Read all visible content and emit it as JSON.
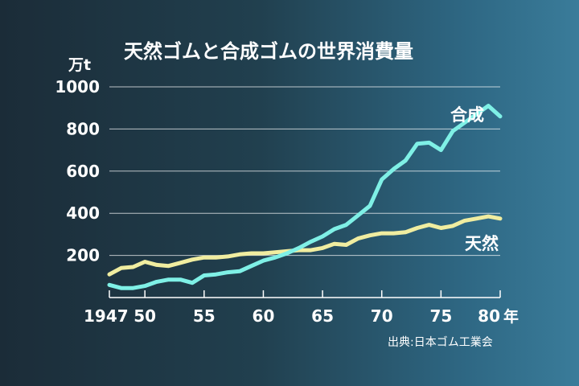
{
  "chart_data": {
    "type": "line",
    "title": "天然ゴムと合成ゴムの世界消費量",
    "y_unit": "万t",
    "x_unit": "年",
    "source": "出典:日本ゴム工業会",
    "xlim": [
      1947,
      1980
    ],
    "ylim": [
      0,
      1000
    ],
    "y_ticks": [
      {
        "value": 200,
        "label": "200"
      },
      {
        "value": 400,
        "label": "400"
      },
      {
        "value": 600,
        "label": "600"
      },
      {
        "value": 800,
        "label": "800"
      },
      {
        "value": 1000,
        "label": "1000"
      }
    ],
    "x_ticks": [
      {
        "value": 1947,
        "label": "1947"
      },
      {
        "value": 1950,
        "label": "50"
      },
      {
        "value": 1955,
        "label": "55"
      },
      {
        "value": 1960,
        "label": "60"
      },
      {
        "value": 1965,
        "label": "65"
      },
      {
        "value": 1970,
        "label": "70"
      },
      {
        "value": 1975,
        "label": "75"
      },
      {
        "value": 1980,
        "label": "80"
      }
    ],
    "x": [
      1947,
      1948,
      1949,
      1950,
      1951,
      1952,
      1953,
      1954,
      1955,
      1956,
      1957,
      1958,
      1959,
      1960,
      1961,
      1962,
      1963,
      1964,
      1965,
      1966,
      1967,
      1968,
      1969,
      1970,
      1971,
      1972,
      1973,
      1974,
      1975,
      1976,
      1977,
      1978,
      1979,
      1980
    ],
    "series": [
      {
        "name": "合成",
        "color": "#7ff0e6",
        "values": [
          60,
          45,
          45,
          55,
          75,
          85,
          85,
          70,
          105,
          110,
          120,
          125,
          150,
          175,
          190,
          210,
          235,
          265,
          290,
          325,
          345,
          390,
          435,
          560,
          610,
          650,
          730,
          735,
          700,
          790,
          830,
          870,
          910,
          860
        ]
      },
      {
        "name": "天然",
        "color": "#f0eda0",
        "values": [
          110,
          140,
          145,
          170,
          155,
          150,
          165,
          180,
          190,
          190,
          195,
          205,
          210,
          210,
          215,
          220,
          225,
          225,
          235,
          255,
          250,
          280,
          295,
          305,
          305,
          310,
          330,
          345,
          330,
          340,
          365,
          375,
          385,
          375
        ]
      }
    ],
    "grid": true,
    "legend": "inline"
  }
}
